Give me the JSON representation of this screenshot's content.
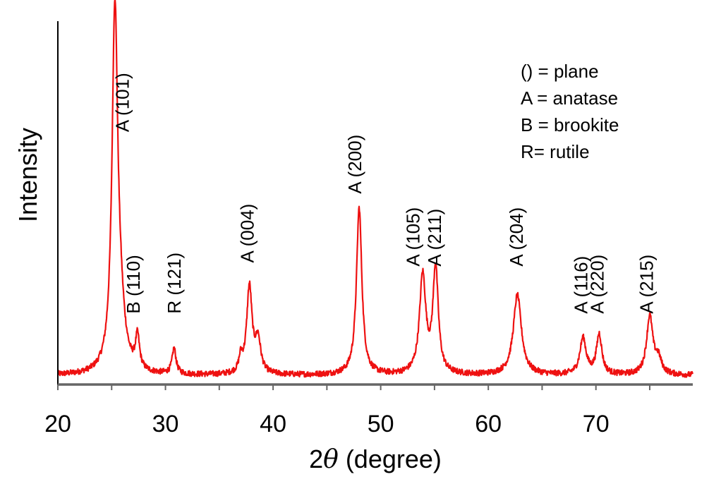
{
  "chart_data": {
    "type": "line",
    "xlabel_prefix": "2",
    "xlabel_symbol": "θ",
    "xlabel_suffix": " (degree)",
    "ylabel": "Intensity",
    "xlim": [
      20,
      79
    ],
    "ylim": [
      0,
      100
    ],
    "x_ticks": [
      20,
      30,
      40,
      50,
      60,
      70
    ],
    "x_minor_ticks": [
      25,
      35,
      45,
      55,
      65,
      75
    ],
    "baseline": 2.5,
    "line_color": "#ee1111",
    "peaks": [
      {
        "center": 25.3,
        "height": 98,
        "width": 0.32
      },
      {
        "center": 25.8,
        "height": 12,
        "width": 0.5
      },
      {
        "center": 27.4,
        "height": 9,
        "width": 0.22
      },
      {
        "center": 30.8,
        "height": 7,
        "width": 0.22
      },
      {
        "center": 37.0,
        "height": 4,
        "width": 0.2
      },
      {
        "center": 37.8,
        "height": 24,
        "width": 0.3
      },
      {
        "center": 38.6,
        "height": 9,
        "width": 0.3
      },
      {
        "center": 48.0,
        "height": 46,
        "width": 0.3
      },
      {
        "center": 53.9,
        "height": 27,
        "width": 0.35
      },
      {
        "center": 55.1,
        "height": 29,
        "width": 0.3
      },
      {
        "center": 62.7,
        "height": 22,
        "width": 0.45
      },
      {
        "center": 68.8,
        "height": 10,
        "width": 0.35
      },
      {
        "center": 70.3,
        "height": 11,
        "width": 0.3
      },
      {
        "center": 75.0,
        "height": 16,
        "width": 0.35
      },
      {
        "center": 75.8,
        "height": 4,
        "width": 0.35
      }
    ],
    "annotations": [
      {
        "text": "A (101)",
        "x": 26.6,
        "y": 69.5
      },
      {
        "text": "B (110)",
        "x": 27.6,
        "y": 19.5
      },
      {
        "text": "R (121)",
        "x": 31.4,
        "y": 19.5
      },
      {
        "text": "A (004)",
        "x": 38.2,
        "y": 33.5
      },
      {
        "text": "A (200)",
        "x": 48.2,
        "y": 52.5
      },
      {
        "text": "A (105)",
        "x": 53.6,
        "y": 32.5
      },
      {
        "text": "A (211)",
        "x": 55.6,
        "y": 32.5
      },
      {
        "text": "A (204)",
        "x": 63.2,
        "y": 32.5
      },
      {
        "text": "A (116)",
        "x": 69.2,
        "y": 19.5
      },
      {
        "text": "A (220)",
        "x": 70.7,
        "y": 19.5
      },
      {
        "text": "A (215)",
        "x": 75.3,
        "y": 19.5
      }
    ],
    "legend_position": "top-right",
    "legend": [
      "() = plane",
      "A = anatase",
      "B = brookite",
      "R= rutile"
    ]
  }
}
